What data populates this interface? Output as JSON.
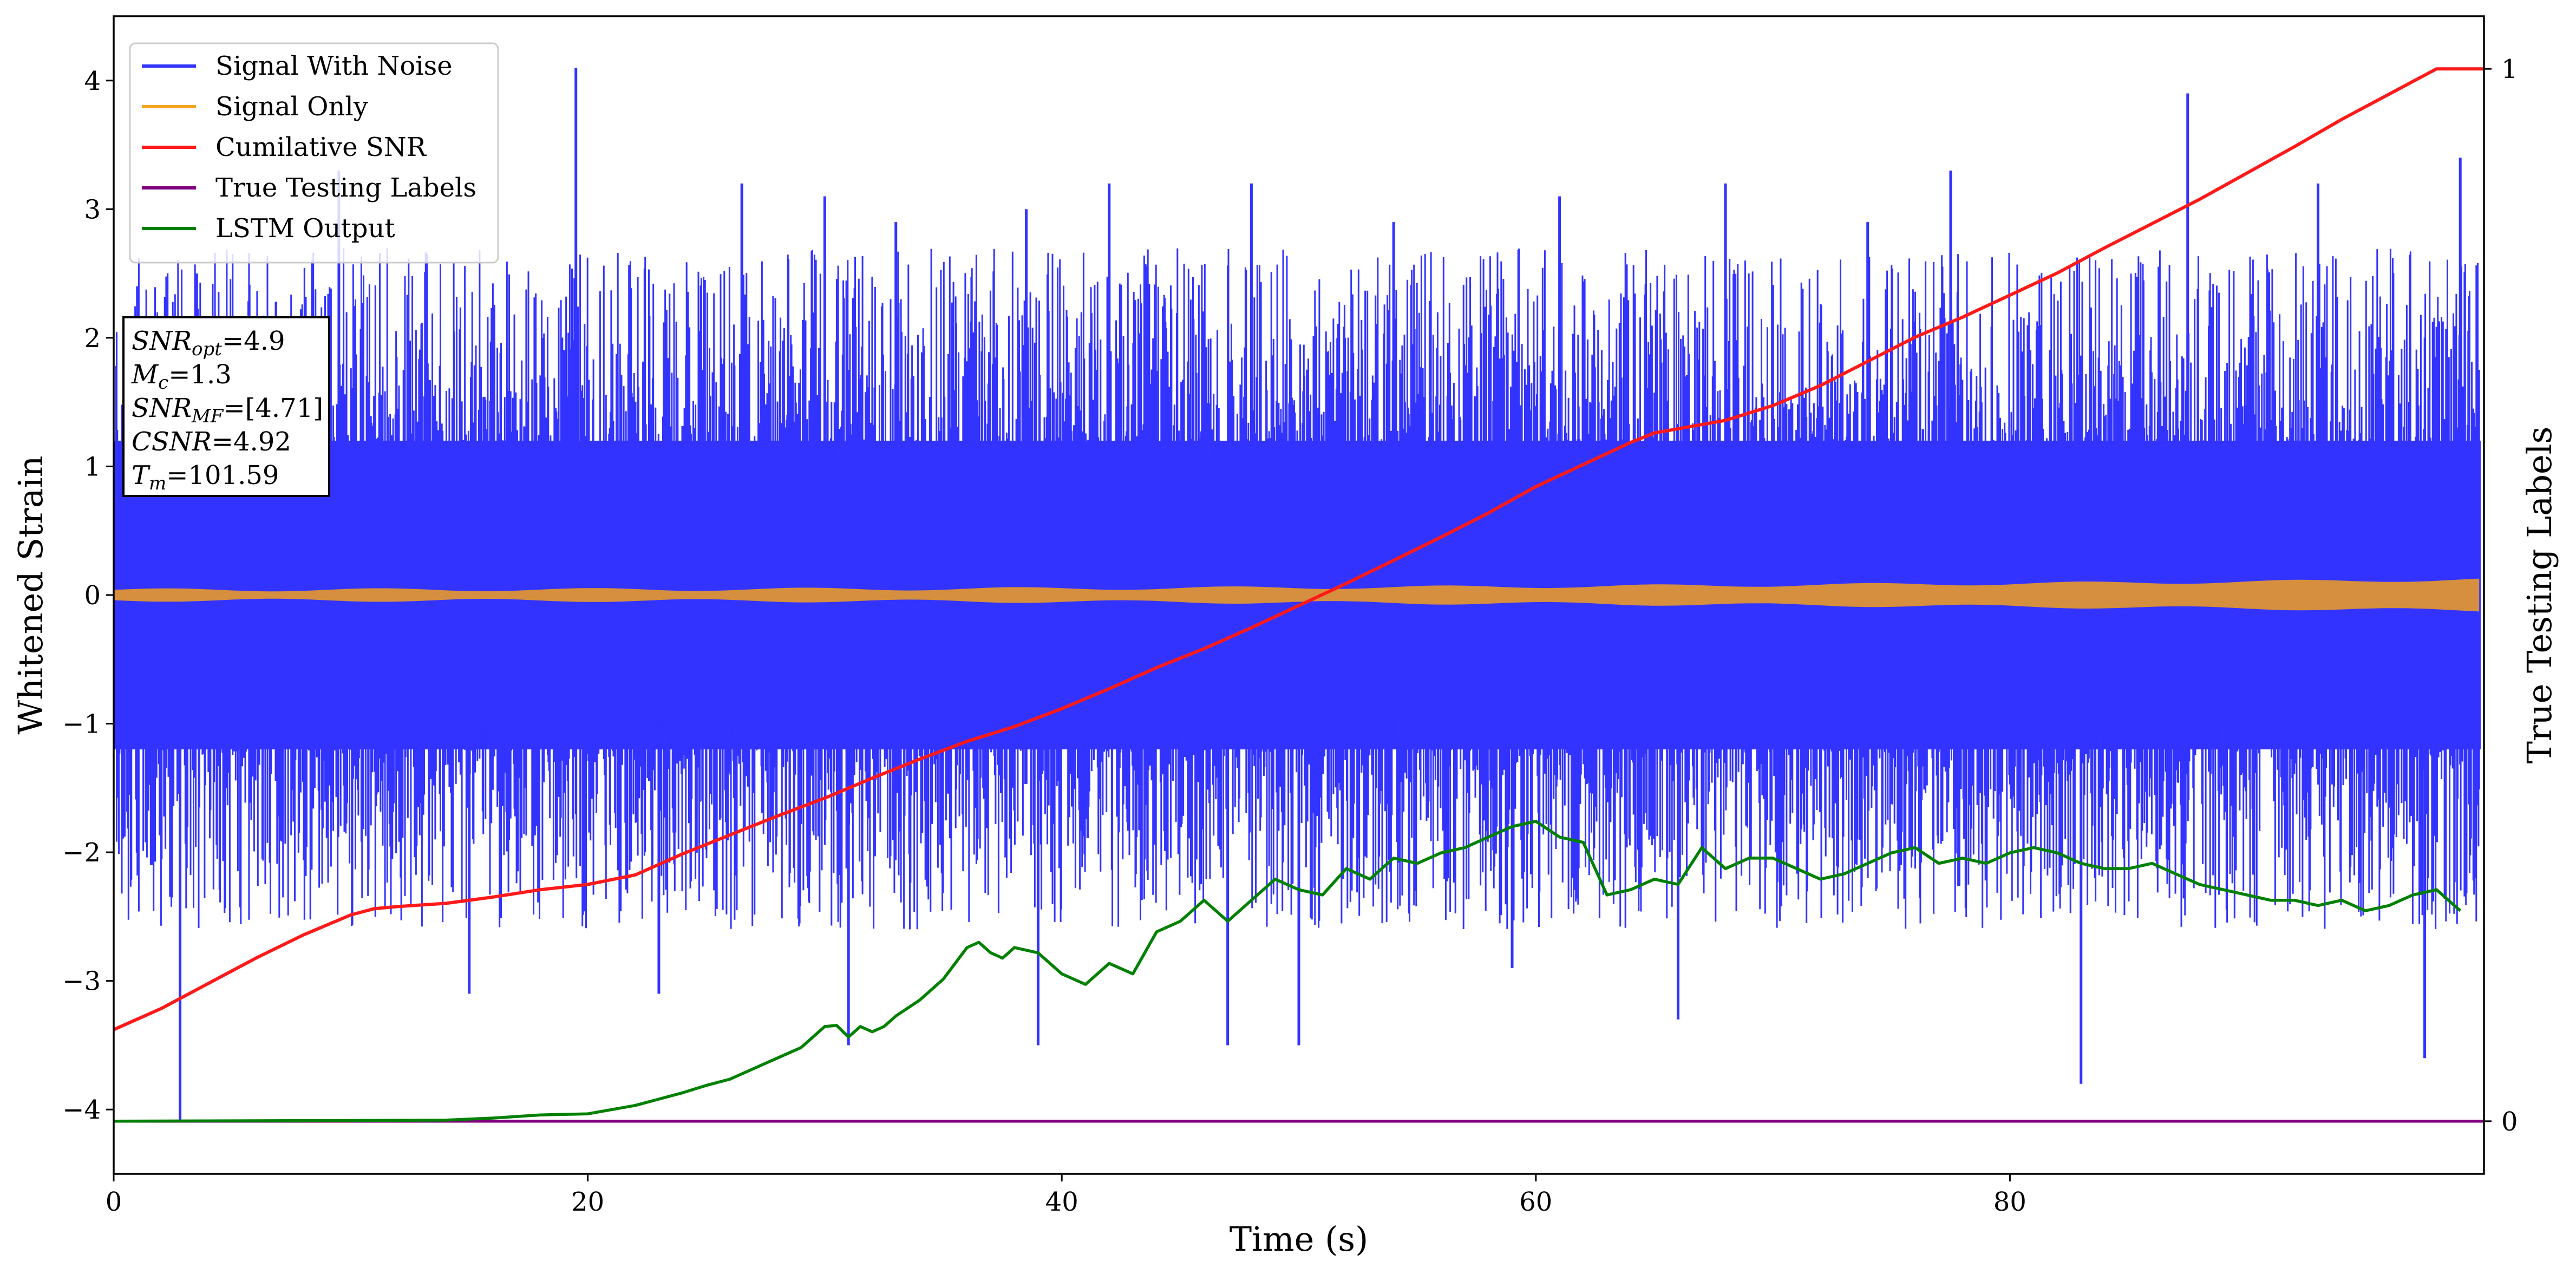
{
  "chart_data": {
    "type": "line",
    "xlabel": "Time (s)",
    "ylabel": "Whitened Strain",
    "y2label": "True Testing Labels",
    "xlim": [
      0,
      100
    ],
    "ylim": [
      -4.5,
      4.5
    ],
    "y2lim": [
      -0.05,
      1.05
    ],
    "x_ticks": [
      0,
      20,
      40,
      60,
      80
    ],
    "y_ticks": [
      -4,
      -3,
      -2,
      -1,
      0,
      1,
      2,
      3,
      4
    ],
    "y2_ticks": [
      0,
      1
    ],
    "grid": false,
    "legend_position": "top-left",
    "legend": [
      {
        "name": "Signal With Noise",
        "color": "#3333ff"
      },
      {
        "name": "Signal Only",
        "color": "#f5a623"
      },
      {
        "name": "Cumilative SNR",
        "color": "#ff1a1a"
      },
      {
        "name": "True Testing Labels",
        "color": "#800080"
      },
      {
        "name": "LSTM Output",
        "color": "#008000"
      }
    ],
    "annotation": {
      "lines": [
        {
          "base": "SNR",
          "sub": "opt",
          "value": "=4.9"
        },
        {
          "base": "M",
          "sub": "c",
          "value": "=1.3"
        },
        {
          "base": "SNR",
          "sub": "MF",
          "value": "=[4.71]"
        },
        {
          "base": "CSNR",
          "sub": "",
          "value": "=4.92"
        },
        {
          "base": "T",
          "sub": "m",
          "value": "=101.59"
        }
      ]
    },
    "series": [
      {
        "name": "Signal With Noise",
        "axis": "left",
        "style": "noise-band",
        "envelope_upper": 1.6,
        "envelope_lower": -1.6,
        "spikes_up": [
          [
            1.0,
            2.4
          ],
          [
            3.5,
            2.5
          ],
          [
            9.5,
            3.3
          ],
          [
            19.5,
            4.1
          ],
          [
            26.5,
            3.2
          ],
          [
            30.0,
            3.1
          ],
          [
            33.0,
            2.9
          ],
          [
            38.5,
            3.0
          ],
          [
            42.0,
            3.2
          ],
          [
            48.0,
            3.2
          ],
          [
            54.0,
            2.9
          ],
          [
            61.0,
            3.1
          ],
          [
            68.0,
            3.2
          ],
          [
            74.0,
            2.9
          ],
          [
            77.5,
            3.3
          ],
          [
            87.5,
            3.9
          ],
          [
            93.0,
            3.2
          ],
          [
            99.0,
            3.4
          ]
        ],
        "spikes_down": [
          [
            2.8,
            -4.1
          ],
          [
            15.0,
            -3.1
          ],
          [
            23.0,
            -3.1
          ],
          [
            31.0,
            -3.5
          ],
          [
            39.0,
            -3.5
          ],
          [
            47.0,
            -3.5
          ],
          [
            50.0,
            -3.5
          ],
          [
            59.0,
            -2.9
          ],
          [
            66.0,
            -3.3
          ],
          [
            83.0,
            -3.8
          ],
          [
            97.5,
            -3.6
          ]
        ]
      },
      {
        "name": "Signal Only",
        "axis": "left",
        "style": "band",
        "amplitude_start": 0.04,
        "amplitude_end": 0.12
      },
      {
        "name": "Cumilative SNR",
        "axis": "right",
        "x": [
          0,
          2,
          4,
          6,
          8,
          10,
          11,
          12,
          14,
          16,
          18,
          20,
          22,
          24,
          26,
          28,
          30,
          32,
          34,
          36,
          38,
          40,
          42,
          44,
          46,
          48,
          50,
          52,
          54,
          56,
          58,
          60,
          62,
          64,
          65,
          68,
          70,
          72,
          74,
          76,
          78,
          80,
          82,
          84,
          86,
          88,
          90,
          92,
          94,
          96,
          98,
          100
        ],
        "values": [
          0.087,
          0.107,
          0.131,
          0.155,
          0.177,
          0.196,
          0.202,
          0.204,
          0.207,
          0.213,
          0.22,
          0.225,
          0.234,
          0.254,
          0.272,
          0.29,
          0.307,
          0.326,
          0.344,
          0.361,
          0.375,
          0.392,
          0.411,
          0.431,
          0.449,
          0.469,
          0.49,
          0.511,
          0.533,
          0.555,
          0.578,
          0.603,
          0.624,
          0.645,
          0.654,
          0.666,
          0.68,
          0.699,
          0.722,
          0.745,
          0.764,
          0.785,
          0.806,
          0.83,
          0.853,
          0.876,
          0.901,
          0.926,
          0.952,
          0.976,
          1.0,
          1.0
        ]
      },
      {
        "name": "True Testing Labels",
        "axis": "right",
        "x": [
          0,
          100
        ],
        "values": [
          0,
          0
        ]
      },
      {
        "name": "LSTM Output",
        "axis": "right",
        "x": [
          0,
          14,
          16,
          18,
          20,
          21,
          22,
          23,
          24,
          25,
          26,
          27,
          28,
          29,
          30,
          30.5,
          31,
          31.5,
          32,
          32.5,
          33,
          34,
          35,
          36,
          36.5,
          37,
          37.5,
          38,
          39,
          40,
          40.5,
          41,
          42,
          43,
          44,
          45,
          45.5,
          46,
          46.5,
          47,
          48,
          49,
          49.5,
          50,
          51,
          52,
          53,
          54,
          55,
          56,
          57,
          58,
          59,
          60,
          61,
          62,
          63,
          64,
          65,
          66,
          67,
          68,
          69,
          70,
          71,
          72,
          73,
          74,
          75,
          76,
          77,
          78,
          79,
          80,
          81,
          82,
          83,
          84,
          85,
          86,
          87,
          88,
          89,
          90,
          91,
          92,
          93,
          94,
          95,
          96,
          97,
          98,
          99
        ],
        "values": [
          0.0,
          0.001,
          0.003,
          0.006,
          0.007,
          0.011,
          0.015,
          0.021,
          0.027,
          0.034,
          0.04,
          0.05,
          0.06,
          0.07,
          0.09,
          0.091,
          0.08,
          0.09,
          0.085,
          0.09,
          0.1,
          0.115,
          0.135,
          0.165,
          0.17,
          0.16,
          0.155,
          0.165,
          0.16,
          0.14,
          0.135,
          0.13,
          0.15,
          0.14,
          0.18,
          0.19,
          0.2,
          0.21,
          0.2,
          0.19,
          0.21,
          0.23,
          0.225,
          0.22,
          0.215,
          0.24,
          0.23,
          0.25,
          0.245,
          0.255,
          0.26,
          0.27,
          0.28,
          0.285,
          0.27,
          0.265,
          0.215,
          0.22,
          0.23,
          0.225,
          0.26,
          0.24,
          0.25,
          0.25,
          0.24,
          0.23,
          0.235,
          0.245,
          0.255,
          0.26,
          0.245,
          0.25,
          0.245,
          0.255,
          0.26,
          0.255,
          0.245,
          0.24,
          0.24,
          0.245,
          0.235,
          0.225,
          0.22,
          0.215,
          0.21,
          0.21,
          0.205,
          0.21,
          0.2,
          0.205,
          0.215,
          0.22,
          0.2
        ]
      }
    ]
  }
}
